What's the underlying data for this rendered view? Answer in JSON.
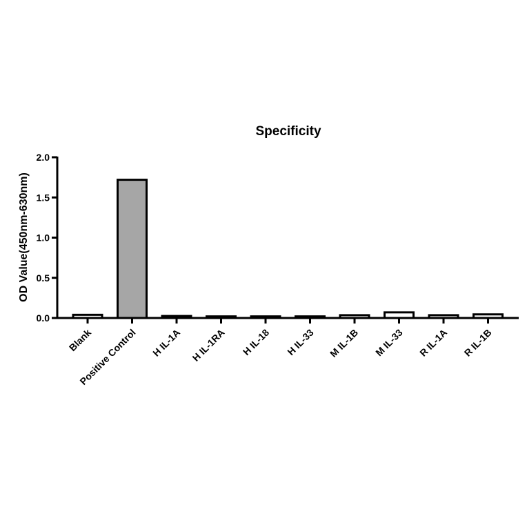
{
  "chart_data": {
    "type": "bar",
    "title": "Specificity",
    "xlabel": "",
    "ylabel": "OD Value(450nm-630nm)",
    "ylim": [
      0,
      2.0
    ],
    "yticks": [
      "0.0",
      "0.5",
      "1.0",
      "1.5",
      "2.0"
    ],
    "categories": [
      "Blank",
      "Positive Control",
      "H IL-1A",
      "H IL-1RA",
      "H IL-18",
      "H IL-33",
      "M IL-1B",
      "M IL-33",
      "R IL-1A",
      "R IL-1B"
    ],
    "values": [
      0.04,
      1.72,
      0.025,
      0.02,
      0.02,
      0.02,
      0.035,
      0.07,
      0.035,
      0.045
    ],
    "bar_colors": [
      "#ffffff",
      "#a6a6a6",
      "#ffffff",
      "#ffffff",
      "#ffffff",
      "#ffffff",
      "#ffffff",
      "#ffffff",
      "#ffffff",
      "#ffffff"
    ],
    "bar_edge_color": "#000000",
    "grid": false,
    "legend": "none"
  }
}
